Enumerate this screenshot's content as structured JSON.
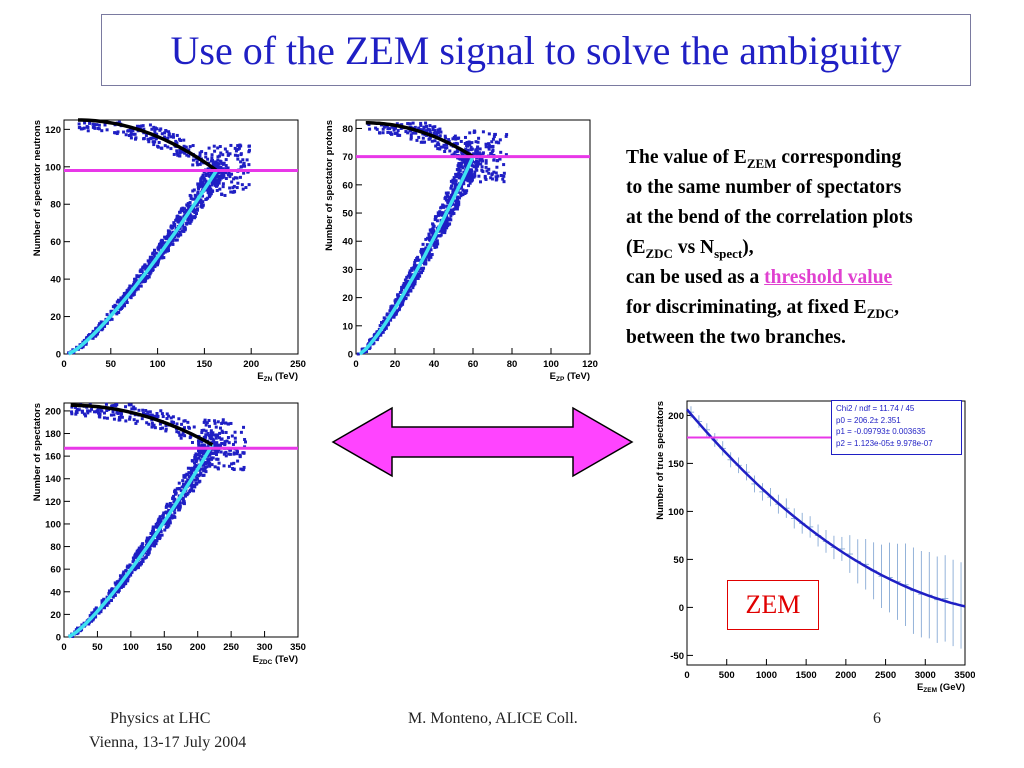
{
  "title": "Use of the ZEM signal to solve the ambiguity",
  "text": {
    "l1a": "The value of E",
    "l1s": "ZEM",
    "l1b": " corresponding",
    "l2": "to the same number of spectators",
    "l3": "at the bend of the correlation plots",
    "l4a": "(E",
    "l4s1": "ZDC",
    "l4b": " vs N",
    "l4s2": "spect",
    "l4c": "),",
    "l5a": "can be used as a ",
    "l5h": "threshold value",
    "l6a": "for discriminating, at fixed E",
    "l6s": "ZDC",
    "l6b": ",",
    "l7": "between the two branches."
  },
  "footer": {
    "left1": "Physics at LHC",
    "left2": "Vienna, 13-17 July 2004",
    "center": "M. Monteno, ALICE Coll.",
    "page": "6"
  },
  "zem_label": "ZEM",
  "stats": {
    "chi2": "Chi2 / ndf = 11.74 / 45",
    "p0": "p0     = 206.2± 2.351",
    "p1": "p1     = -0.09793± 0.003635",
    "p2": "p2     = 1.123e-05± 9.978e-07"
  },
  "colors": {
    "title": "#1f1fc4",
    "scatter": "#1f1fc4",
    "fit_cyan": "#3fe0f0",
    "fit_black": "#000000",
    "threshold": "#e838e8",
    "arrow_fill": "#ff44ff",
    "highlight": "#e040d0",
    "zem": "#e00000"
  },
  "chart_data": [
    {
      "type": "scatter",
      "ylabel": "Number of spectator neutrons",
      "xlabel_main": "E",
      "xlabel_sub": "ZN",
      "xlabel_unit": " (TeV)",
      "xlim": [
        0,
        250
      ],
      "ylim": [
        0,
        125
      ],
      "xticks": [
        0,
        50,
        100,
        150,
        200,
        250
      ],
      "yticks": [
        0,
        20,
        40,
        60,
        80,
        100,
        120
      ],
      "threshold_y": 98,
      "bend": [
        163,
        98
      ],
      "top": [
        15,
        125
      ],
      "xmin_cloud": 5
    },
    {
      "type": "scatter",
      "ylabel": "Number of spectator protons",
      "xlabel_main": "E",
      "xlabel_sub": "ZP",
      "xlabel_unit": " (TeV)",
      "xlim": [
        0,
        120
      ],
      "ylim": [
        0,
        83
      ],
      "xticks": [
        0,
        20,
        40,
        60,
        80,
        100,
        120
      ],
      "yticks": [
        0,
        10,
        20,
        30,
        40,
        50,
        60,
        70,
        80
      ],
      "threshold_y": 70,
      "bend": [
        60,
        70
      ],
      "top": [
        5,
        82
      ],
      "xmin_cloud": 2
    },
    {
      "type": "scatter",
      "ylabel": "Number of spectators",
      "xlabel_main": "E",
      "xlabel_sub": "ZDC",
      "xlabel_unit": " (TeV)",
      "xlim": [
        0,
        350
      ],
      "ylim": [
        0,
        207
      ],
      "xticks": [
        0,
        50,
        100,
        150,
        200,
        250,
        300,
        350
      ],
      "yticks": [
        0,
        20,
        40,
        60,
        80,
        100,
        120,
        140,
        160,
        180,
        200
      ],
      "threshold_y": 167,
      "bend": [
        222,
        170
      ],
      "top": [
        10,
        205
      ],
      "xmin_cloud": 7
    },
    {
      "type": "line",
      "ylabel": "Number of true spectators",
      "xlabel_main": "E",
      "xlabel_sub": "ZEM",
      "xlabel_unit": " (GeV)",
      "xlim": [
        0,
        3500
      ],
      "ylim": [
        -60,
        215
      ],
      "xticks": [
        0,
        500,
        1000,
        1500,
        2000,
        2500,
        3000,
        3500
      ],
      "yticks": [
        -50,
        0,
        50,
        100,
        150,
        200
      ],
      "threshold_y": 177,
      "fit": {
        "p0": 206.2,
        "p1": -0.09793,
        "p2": 1.123e-05
      }
    }
  ]
}
